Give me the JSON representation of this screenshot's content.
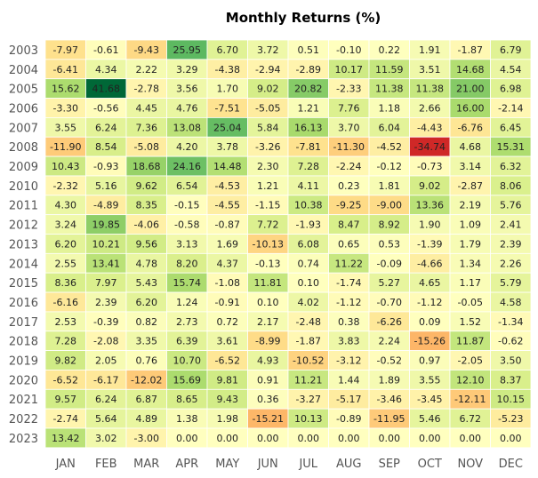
{
  "chart_data": {
    "type": "heatmap",
    "title": "Monthly Returns (%)",
    "x_categories": [
      "JAN",
      "FEB",
      "MAR",
      "APR",
      "MAY",
      "JUN",
      "JUL",
      "AUG",
      "SEP",
      "OCT",
      "NOV",
      "DEC"
    ],
    "y_categories": [
      "2003",
      "2004",
      "2005",
      "2006",
      "2007",
      "2008",
      "2009",
      "2010",
      "2011",
      "2012",
      "2013",
      "2014",
      "2015",
      "2016",
      "2017",
      "2018",
      "2019",
      "2020",
      "2021",
      "2022",
      "2023"
    ],
    "values": [
      [
        "-7.97",
        "-0.61",
        "-9.43",
        "25.95",
        "6.70",
        "3.72",
        "0.51",
        "-0.10",
        "0.22",
        "1.91",
        "-1.87",
        "6.79"
      ],
      [
        "-6.41",
        "4.34",
        "2.22",
        "3.29",
        "-4.38",
        "-2.94",
        "-2.89",
        "10.17",
        "11.59",
        "3.51",
        "14.68",
        "4.54"
      ],
      [
        "15.62",
        "41.68",
        "-2.78",
        "3.56",
        "1.70",
        "9.02",
        "20.82",
        "-2.33",
        "11.38",
        "11.38",
        "21.00",
        "6.98"
      ],
      [
        "-3.30",
        "-0.56",
        "4.45",
        "4.76",
        "-7.51",
        "-5.05",
        "1.21",
        "7.76",
        "1.18",
        "2.66",
        "16.00",
        "-2.14"
      ],
      [
        "3.55",
        "6.24",
        "7.36",
        "13.08",
        "25.04",
        "5.84",
        "16.13",
        "3.70",
        "6.04",
        "-4.43",
        "-6.76",
        "6.45"
      ],
      [
        "-11.90",
        "8.54",
        "-5.08",
        "4.20",
        "3.78",
        "-3.26",
        "-7.81",
        "-11.30",
        "-4.52",
        "-34.74",
        "4.68",
        "15.31"
      ],
      [
        "10.43",
        "-0.93",
        "18.68",
        "24.16",
        "14.48",
        "2.30",
        "7.28",
        "-2.24",
        "-0.12",
        "-0.73",
        "3.14",
        "6.32"
      ],
      [
        "-2.32",
        "5.16",
        "9.62",
        "6.54",
        "-4.53",
        "1.21",
        "4.11",
        "0.23",
        "1.81",
        "9.02",
        "-2.87",
        "8.06"
      ],
      [
        "4.30",
        "-4.89",
        "8.35",
        "-0.15",
        "-4.55",
        "-1.15",
        "10.38",
        "-9.25",
        "-9.00",
        "13.36",
        "2.19",
        "5.76"
      ],
      [
        "3.24",
        "19.85",
        "-4.06",
        "-0.58",
        "-0.87",
        "7.72",
        "-1.93",
        "8.47",
        "8.92",
        "1.90",
        "1.09",
        "2.41"
      ],
      [
        "6.20",
        "10.21",
        "9.56",
        "3.13",
        "1.69",
        "-10.13",
        "6.08",
        "0.65",
        "0.53",
        "-1.39",
        "1.79",
        "2.39"
      ],
      [
        "2.55",
        "13.41",
        "4.78",
        "8.20",
        "4.37",
        "-0.13",
        "0.74",
        "11.22",
        "-0.09",
        "-4.66",
        "1.34",
        "2.26"
      ],
      [
        "8.36",
        "7.97",
        "5.43",
        "15.74",
        "-1.08",
        "11.81",
        "0.10",
        "-1.74",
        "5.27",
        "4.65",
        "1.17",
        "5.79"
      ],
      [
        "-6.16",
        "2.39",
        "6.20",
        "1.24",
        "-0.91",
        "0.10",
        "4.02",
        "-1.12",
        "-0.70",
        "-1.12",
        "-0.05",
        "4.58"
      ],
      [
        "2.53",
        "-0.39",
        "0.82",
        "2.73",
        "0.72",
        "2.17",
        "-2.48",
        "0.38",
        "-6.26",
        "0.09",
        "1.52",
        "-1.34"
      ],
      [
        "7.28",
        "-2.08",
        "3.35",
        "6.39",
        "3.61",
        "-8.99",
        "-1.87",
        "3.83",
        "2.24",
        "-15.26",
        "11.87",
        "-0.62"
      ],
      [
        "9.82",
        "2.05",
        "0.76",
        "10.70",
        "-6.52",
        "4.93",
        "-10.52",
        "-3.12",
        "-0.52",
        "0.97",
        "-2.05",
        "3.50"
      ],
      [
        "-6.52",
        "-6.17",
        "-12.02",
        "15.69",
        "9.81",
        "0.91",
        "11.21",
        "1.44",
        "1.89",
        "3.55",
        "12.10",
        "8.37"
      ],
      [
        "9.57",
        "6.24",
        "6.87",
        "8.65",
        "9.43",
        "0.36",
        "-3.27",
        "-5.17",
        "-3.46",
        "-3.45",
        "-12.11",
        "10.15"
      ],
      [
        "-2.74",
        "5.64",
        "4.89",
        "1.38",
        "1.98",
        "-15.21",
        "10.13",
        "-0.89",
        "-11.95",
        "5.46",
        "6.72",
        "-5.23"
      ],
      [
        "13.42",
        "3.02",
        "-3.00",
        "0.00",
        "0.00",
        "0.00",
        "0.00",
        "0.00",
        "0.00",
        "0.00",
        "0.00",
        "0.00"
      ]
    ],
    "colormap": "RdYlGn",
    "color_center": 0,
    "colorbar": false,
    "grid": false,
    "legend": "none"
  }
}
